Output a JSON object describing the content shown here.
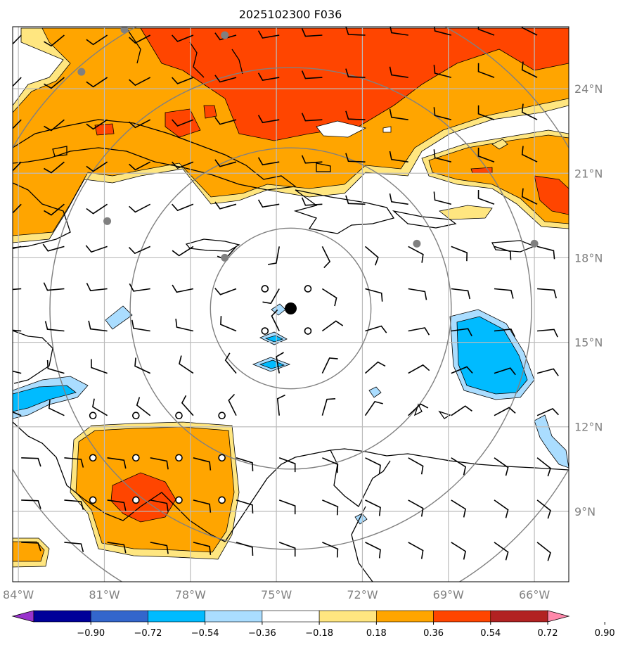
{
  "title": "2025102300 F036",
  "colors": {
    "levels": [
      "#9933cc",
      "#000099",
      "#3366cc",
      "#00bbff",
      "#aaddff",
      "#ffffff",
      "#ffe680",
      "#ffa500",
      "#ff4500",
      "#b22222",
      "#ff88aa"
    ],
    "gray": "#808080",
    "grid": "#bbbbbb"
  },
  "map": {
    "lon_range": [
      -84.2,
      -64.8
    ],
    "lat_range": [
      6.5,
      26.2
    ],
    "lat_labels": [
      {
        "value": 24,
        "text": "24°N"
      },
      {
        "value": 21,
        "text": "21°N"
      },
      {
        "value": 18,
        "text": "18°N"
      },
      {
        "value": 15,
        "text": "15°N"
      },
      {
        "value": 12,
        "text": "12°N"
      },
      {
        "value": 9,
        "text": "9°N"
      }
    ],
    "lon_labels": [
      {
        "value": -84,
        "text": "84°W"
      },
      {
        "value": -81,
        "text": "81°W"
      },
      {
        "value": -78,
        "text": "78°W"
      },
      {
        "value": -75,
        "text": "75°W"
      },
      {
        "value": -72,
        "text": "72°W"
      },
      {
        "value": -69,
        "text": "69°W"
      },
      {
        "value": -66,
        "text": "66°W"
      }
    ],
    "center": {
      "lon": -74.5,
      "lat": 16.2
    },
    "ring_radii_deg": [
      2.8,
      5.6,
      8.4,
      11.2
    ],
    "calm_points": [
      [
        -75.4,
        16.9
      ],
      [
        -73.9,
        16.9
      ],
      [
        -75.4,
        15.4
      ],
      [
        -73.9,
        15.4
      ],
      [
        -81.4,
        12.4
      ],
      [
        -79.9,
        12.4
      ],
      [
        -78.4,
        12.4
      ],
      [
        -76.9,
        12.4
      ],
      [
        -81.4,
        10.9
      ],
      [
        -79.9,
        10.9
      ],
      [
        -78.4,
        10.9
      ],
      [
        -76.9,
        10.9
      ],
      [
        -81.4,
        9.4
      ],
      [
        -79.9,
        9.4
      ],
      [
        -78.4,
        9.4
      ],
      [
        -76.9,
        9.4
      ]
    ],
    "stations": [
      [
        -80.3,
        26.1
      ],
      [
        -76.8,
        25.9
      ],
      [
        -81.8,
        24.6
      ],
      [
        -80.9,
        19.3
      ],
      [
        -76.8,
        18.0
      ],
      [
        -70.1,
        18.5
      ],
      [
        -66.0,
        18.5
      ]
    ]
  },
  "colorbar": {
    "ticks": [
      "−0.90",
      "−0.72",
      "−0.54",
      "−0.36",
      "−0.18",
      "0.18",
      "0.36",
      "0.54",
      "0.72",
      "0.90"
    ]
  }
}
